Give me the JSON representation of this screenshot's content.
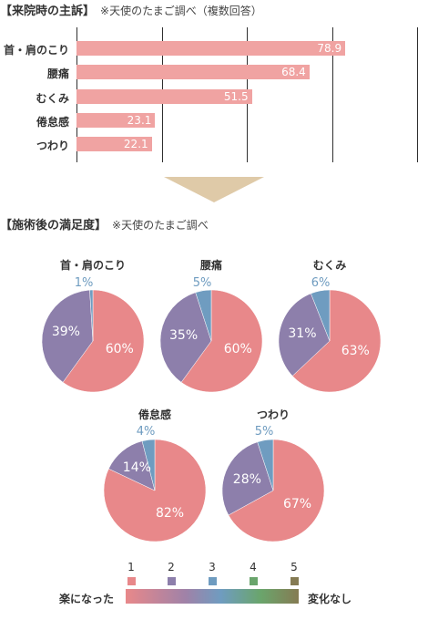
{
  "section1": {
    "title": "【来院時の主訴】",
    "note": "※天使のたまご調べ（複数回答）"
  },
  "section2": {
    "title": "【施術後の満足度】",
    "note": "※天使のたまご調べ"
  },
  "colors": {
    "bar": "#f0a3a2",
    "level1": "#e8888a",
    "level2": "#8d7fab",
    "level3": "#6f9cc0",
    "level4": "#6aa56c",
    "level5": "#857b53"
  },
  "legend": {
    "levels": [
      "1",
      "2",
      "3",
      "4",
      "5"
    ],
    "left_label": "楽になった",
    "right_label": "変化なし"
  },
  "chart_data": [
    {
      "type": "bar",
      "orientation": "horizontal",
      "categories": [
        "首・肩のこり",
        "腰痛",
        "むくみ",
        "倦怠感",
        "つわり"
      ],
      "values": [
        78.9,
        68.4,
        51.5,
        23.1,
        22.1
      ],
      "xlim": [
        0,
        100
      ],
      "grid": true
    },
    {
      "type": "pie",
      "title": "首・肩のこり",
      "slices": [
        {
          "level": "1",
          "value": 60,
          "label": "60%"
        },
        {
          "level": "2",
          "value": 39,
          "label": "39%"
        },
        {
          "level": "3",
          "value": 1,
          "label": "1%"
        }
      ]
    },
    {
      "type": "pie",
      "title": "腰痛",
      "slices": [
        {
          "level": "1",
          "value": 60,
          "label": "60%"
        },
        {
          "level": "2",
          "value": 35,
          "label": "35%"
        },
        {
          "level": "3",
          "value": 5,
          "label": "5%"
        }
      ]
    },
    {
      "type": "pie",
      "title": "むくみ",
      "slices": [
        {
          "level": "1",
          "value": 63,
          "label": "63%"
        },
        {
          "level": "2",
          "value": 31,
          "label": "31%"
        },
        {
          "level": "3",
          "value": 6,
          "label": "6%"
        }
      ]
    },
    {
      "type": "pie",
      "title": "倦怠感",
      "slices": [
        {
          "level": "1",
          "value": 82,
          "label": "82%"
        },
        {
          "level": "2",
          "value": 14,
          "label": "14%"
        },
        {
          "level": "3",
          "value": 4,
          "label": "4%"
        }
      ]
    },
    {
      "type": "pie",
      "title": "つわり",
      "slices": [
        {
          "level": "1",
          "value": 67,
          "label": "67%"
        },
        {
          "level": "2",
          "value": 28,
          "label": "28%"
        },
        {
          "level": "3",
          "value": 5,
          "label": "5%"
        }
      ]
    }
  ]
}
